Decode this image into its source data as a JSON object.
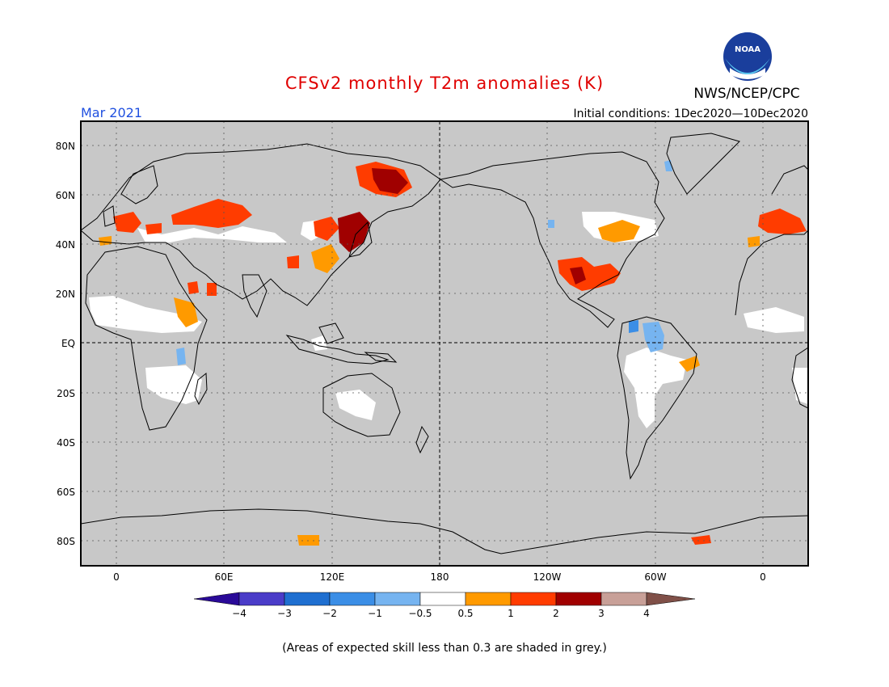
{
  "header": {
    "title": "CFSv2 monthly T2m anomalies (K)",
    "month": "Mar 2021",
    "initial_conditions": "Initial conditions: 1Dec2020—10Dec2020",
    "agency": "NWS/NCEP/CPC",
    "logo_text": "NOAA"
  },
  "map": {
    "lat_labels": [
      "80N",
      "60N",
      "40N",
      "20N",
      "EQ",
      "20S",
      "40S",
      "60S",
      "80S"
    ],
    "lon_labels": [
      "0",
      "60E",
      "120E",
      "180",
      "120W",
      "60W",
      "0"
    ],
    "background_color": "#c8c8c8",
    "regions": [
      {
        "name": "Western Europe",
        "category": "1 to 2"
      },
      {
        "name": "Eastern Europe / Russia",
        "category": "1 to 2"
      },
      {
        "name": "Northeast Siberia",
        "category": "2 to 3"
      },
      {
        "name": "Northeast China / Japan",
        "category": "2 to 3"
      },
      {
        "name": "Central Asia",
        "category": "1 to 2"
      },
      {
        "name": "Southern US / Mexico",
        "category": "2 to 3"
      },
      {
        "name": "Great Lakes",
        "category": "0.5 to 1"
      },
      {
        "name": "Northern Brazil",
        "category": "-1 to -0.5"
      },
      {
        "name": "Antarctica 110E",
        "category": "0.5 to 1"
      },
      {
        "name": "Antarctic Peninsula",
        "category": "1 to 2"
      }
    ]
  },
  "legend": {
    "labels": [
      "−4",
      "−3",
      "−2",
      "−1",
      "−0.5",
      "0.5",
      "1",
      "2",
      "3",
      "4"
    ],
    "colors": [
      "#2a0a98",
      "#4a3cc8",
      "#1f6fd0",
      "#3b8ee6",
      "#76b4f0",
      "#ffffff",
      "#ff9a00",
      "#ff3c00",
      "#a00000",
      "#c8a098",
      "#805048"
    ]
  },
  "footnote": "(Areas of expected skill less than 0.3 are shaded in grey.)"
}
